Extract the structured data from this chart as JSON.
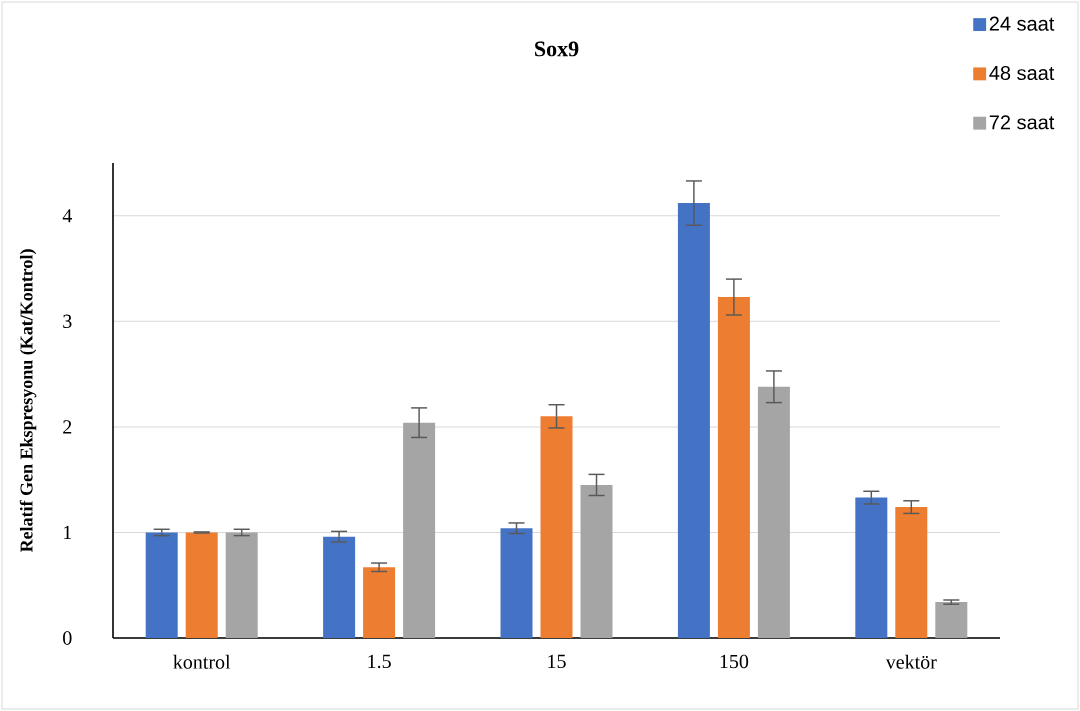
{
  "chart_data": {
    "type": "bar",
    "title": "Sox9",
    "ylabel": "Relatif Gen Ekspresyonu (Kat/Kontrol)",
    "categories": [
      "kontrol",
      "1.5",
      "15",
      "150",
      "vektör"
    ],
    "series": [
      {
        "name": "24 saat",
        "color": "#4472c4",
        "values": [
          1.0,
          0.96,
          1.04,
          4.12,
          1.33
        ],
        "errors": [
          0.03,
          0.05,
          0.05,
          0.21,
          0.06
        ]
      },
      {
        "name": "48 saat",
        "color": "#ed7d31",
        "values": [
          1.0,
          0.67,
          2.1,
          3.23,
          1.24
        ],
        "errors": [
          0.005,
          0.04,
          0.11,
          0.17,
          0.06
        ]
      },
      {
        "name": "72 saat",
        "color": "#a5a5a5",
        "values": [
          1.0,
          2.04,
          1.45,
          2.38,
          0.34
        ],
        "errors": [
          0.03,
          0.14,
          0.1,
          0.15,
          0.02
        ]
      }
    ],
    "ylim": [
      0,
      4.5
    ],
    "yticks": [
      0,
      1,
      2,
      3,
      4
    ],
    "grid": "y",
    "legend": "top right"
  }
}
